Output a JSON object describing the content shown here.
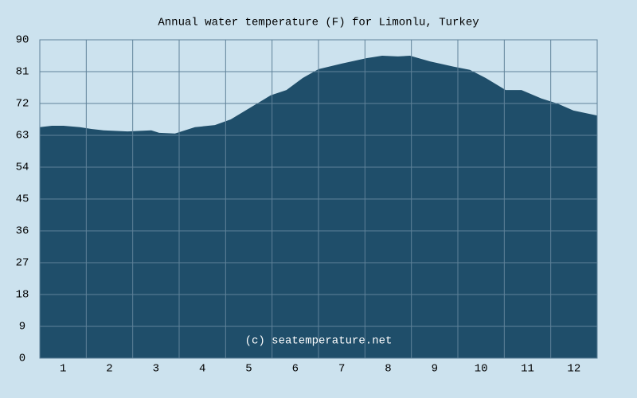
{
  "chart_data": {
    "type": "area",
    "title": "Annual water temperature (F) for Limonlu, Turkey",
    "watermark": "(c) seatemperature.net",
    "x": [
      0.5,
      0.76,
      1.01,
      1.36,
      1.61,
      1.87,
      2.39,
      2.9,
      3.07,
      3.41,
      3.84,
      4.27,
      4.61,
      5.13,
      5.47,
      5.81,
      6.16,
      6.5,
      7.01,
      7.53,
      7.87,
      8.21,
      8.47,
      8.9,
      9.41,
      9.76,
      10.1,
      10.53,
      10.87,
      11.3,
      11.64,
      11.99,
      12.5
    ],
    "values": [
      65.3,
      65.7,
      65.7,
      65.3,
      64.8,
      64.4,
      64.1,
      64.4,
      63.7,
      63.5,
      65.3,
      65.9,
      67.5,
      71.6,
      74.3,
      75.8,
      79.2,
      81.7,
      83.3,
      84.8,
      85.5,
      85.3,
      85.5,
      83.9,
      82.4,
      81.5,
      79.2,
      75.8,
      75.8,
      73.4,
      72,
      70,
      68.6
    ],
    "color": "#1f4e6a",
    "xlim": [
      0.5,
      12.5
    ],
    "xticks": [
      1,
      2,
      3,
      4,
      5,
      6,
      7,
      8,
      9,
      10,
      11,
      12
    ],
    "ylim": [
      0,
      90
    ],
    "yticks": [
      0,
      9,
      18,
      27,
      36,
      45,
      54,
      63,
      72,
      81,
      90
    ],
    "grid": true
  }
}
